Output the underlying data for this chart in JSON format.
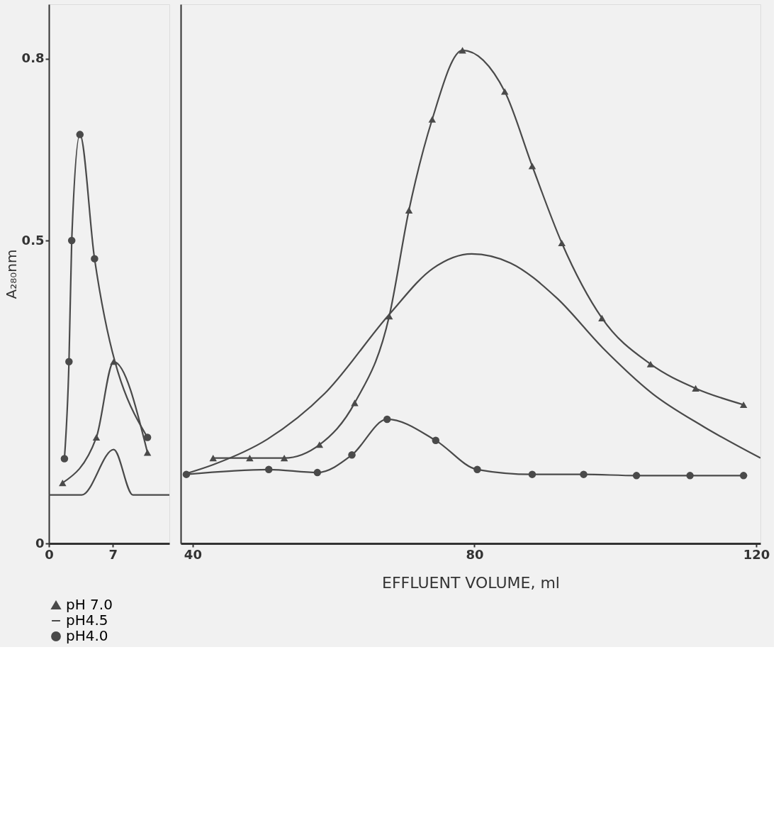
{
  "chart_data": [
    {
      "type": "line",
      "ylabel": "A₂₈₀nm",
      "xlim": [
        0,
        13.2
      ],
      "xticks": [
        0,
        7
      ],
      "ylim": [
        0,
        0.89
      ],
      "yticks": [
        0,
        0.5,
        0.8
      ],
      "grid": false,
      "legend": "bottom left",
      "series": [
        {
          "name": "pH 7.0",
          "color": "#4a4a4a",
          "marker": "triangle",
          "x": [
            1.5,
            5.2,
            7.1,
            10.8
          ],
          "values": [
            0.1,
            0.175,
            0.3,
            0.15
          ]
        },
        {
          "name": "pH4.5",
          "color": "#4a4a4a",
          "marker": "none",
          "x": [
            0,
            3.6,
            7.1,
            9.2,
            13.2
          ],
          "values": [
            0.08,
            0.08,
            0.155,
            0.08,
            0.08
          ]
        },
        {
          "name": "pH4.0",
          "color": "#4a4a4a",
          "marker": "circle",
          "x": [
            1.7,
            2.2,
            2.5,
            3.4,
            5.0,
            10.8
          ],
          "values": [
            0.14,
            0.3,
            0.5,
            0.675,
            0.47,
            0.175
          ]
        }
      ]
    },
    {
      "type": "line",
      "xlabel": "EFFLUENT  VOLUME, ml",
      "xlim": [
        38.3,
        120.6
      ],
      "xticks": [
        40,
        80,
        120
      ],
      "ylim": [
        0,
        0.89
      ],
      "grid": false,
      "tick_labels": "x",
      "legend": false,
      "series": [
        {
          "name": "pH 7.0",
          "color": "#4a4a4a",
          "marker": "triangle",
          "x": [
            42.9,
            48.1,
            53.0,
            58.0,
            63.0,
            67.9,
            70.7,
            74.0,
            78.3,
            84.3,
            88.2,
            92.4,
            98.1,
            105.0,
            111.4,
            118.2
          ],
          "values": [
            0.141,
            0.141,
            0.141,
            0.163,
            0.232,
            0.375,
            0.55,
            0.7,
            0.814,
            0.746,
            0.623,
            0.496,
            0.372,
            0.296,
            0.256,
            0.229
          ]
        },
        {
          "name": "pH4.5",
          "color": "#4a4a4a",
          "marker": "none",
          "x": [
            38.7,
            42.9,
            50.6,
            58.7,
            67.9,
            74.1,
            79.6,
            85.1,
            91.7,
            98.2,
            105.3,
            112.5,
            120.6
          ],
          "values": [
            0.114,
            0.13,
            0.172,
            0.247,
            0.378,
            0.454,
            0.478,
            0.463,
            0.405,
            0.323,
            0.247,
            0.193,
            0.141
          ]
        },
        {
          "name": "pH4.0",
          "color": "#4a4a4a",
          "marker": "circle",
          "x": [
            39.1,
            50.8,
            57.7,
            62.6,
            67.6,
            74.5,
            80.4,
            88.2,
            95.5,
            103.0,
            110.6,
            118.2
          ],
          "values": [
            0.114,
            0.122,
            0.117,
            0.146,
            0.205,
            0.17,
            0.122,
            0.114,
            0.114,
            0.112,
            0.112,
            0.112
          ]
        }
      ]
    }
  ]
}
